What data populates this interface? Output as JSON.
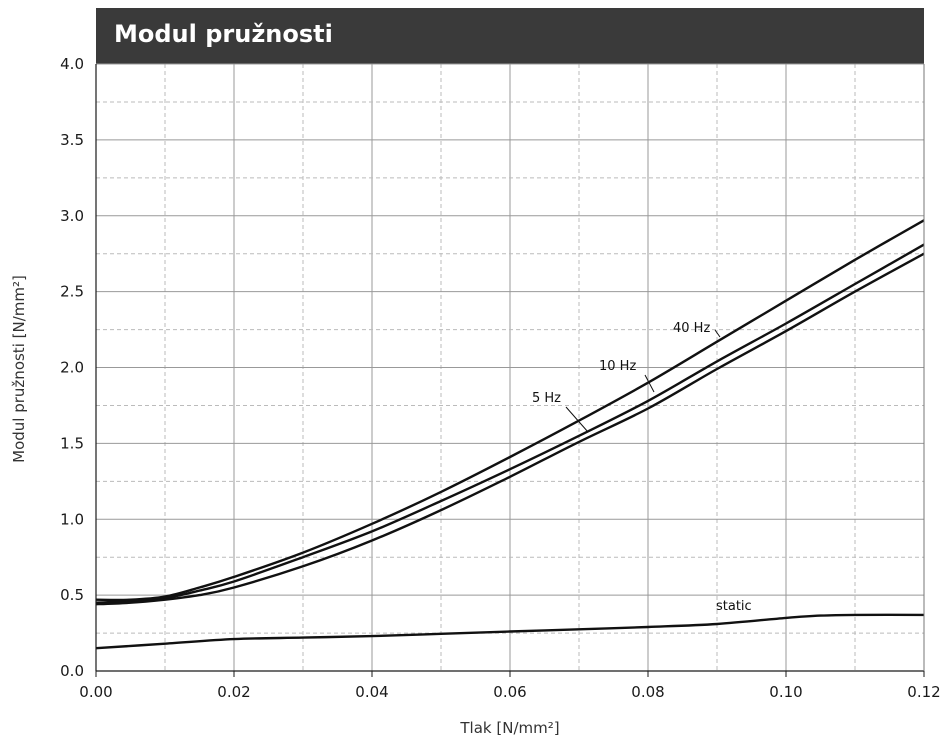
{
  "chart_data": {
    "type": "line",
    "title": "Modul pružnosti",
    "xlabel": "Tlak [N/mm²]",
    "ylabel": "Modul pružnosti [N/mm²]",
    "xlim": [
      0,
      0.12
    ],
    "ylim": [
      0,
      4.0
    ],
    "x_ticks": [
      "0.00",
      "0.02",
      "0.04",
      "0.06",
      "0.08",
      "0.10",
      "0.12"
    ],
    "y_ticks": [
      "0.0",
      "0.5",
      "1.0",
      "1.5",
      "2.0",
      "2.5",
      "3.0",
      "3.5",
      "4.0"
    ],
    "grid": true,
    "series": [
      {
        "name": "40 Hz",
        "x": [
          0,
          0.005,
          0.01,
          0.015,
          0.02,
          0.03,
          0.04,
          0.05,
          0.06,
          0.07,
          0.08,
          0.09,
          0.1,
          0.11,
          0.12
        ],
        "y": [
          0.47,
          0.47,
          0.49,
          0.55,
          0.62,
          0.78,
          0.97,
          1.18,
          1.41,
          1.65,
          1.9,
          2.17,
          2.44,
          2.71,
          2.97
        ]
      },
      {
        "name": "10 Hz",
        "x": [
          0,
          0.005,
          0.01,
          0.015,
          0.02,
          0.03,
          0.04,
          0.05,
          0.06,
          0.07,
          0.08,
          0.09,
          0.1,
          0.11,
          0.12
        ],
        "y": [
          0.45,
          0.46,
          0.48,
          0.53,
          0.59,
          0.75,
          0.92,
          1.12,
          1.33,
          1.55,
          1.78,
          2.04,
          2.29,
          2.55,
          2.81
        ]
      },
      {
        "name": "5 Hz",
        "x": [
          0,
          0.005,
          0.01,
          0.015,
          0.02,
          0.03,
          0.04,
          0.05,
          0.06,
          0.07,
          0.08,
          0.09,
          0.1,
          0.11,
          0.12
        ],
        "y": [
          0.44,
          0.45,
          0.47,
          0.5,
          0.55,
          0.69,
          0.86,
          1.06,
          1.28,
          1.51,
          1.73,
          1.99,
          2.24,
          2.5,
          2.75
        ]
      },
      {
        "name": "static",
        "x": [
          0,
          0.01,
          0.02,
          0.03,
          0.04,
          0.05,
          0.06,
          0.07,
          0.08,
          0.09,
          0.1,
          0.105,
          0.11,
          0.12
        ],
        "y": [
          0.15,
          0.18,
          0.21,
          0.22,
          0.23,
          0.245,
          0.26,
          0.275,
          0.29,
          0.31,
          0.35,
          0.365,
          0.37,
          0.37
        ]
      }
    ],
    "colors": {
      "line": "#111111",
      "grid": "#999999",
      "axis": "#1a1a1a",
      "title_bg": "#3a3a3a",
      "title_text": "#ffffff"
    }
  }
}
